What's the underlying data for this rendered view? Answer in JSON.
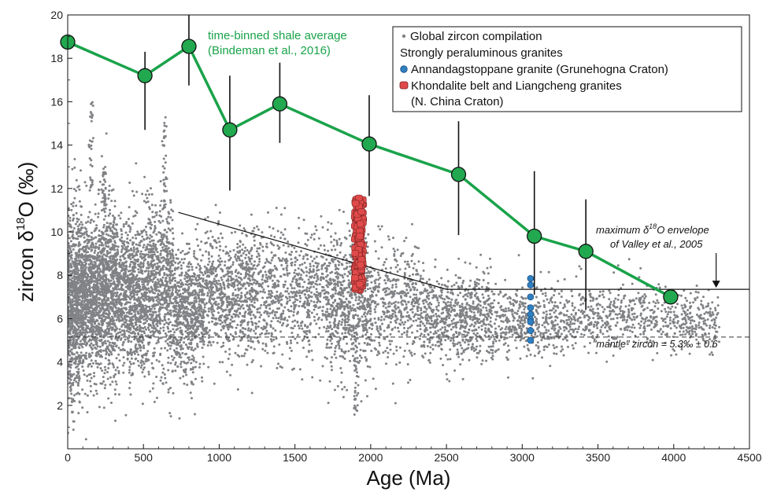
{
  "chart_data": {
    "type": "scatter",
    "xlabel": "Age (Ma)",
    "ylabel_main": "zircon δ",
    "ylabel_sup": "18",
    "ylabel_tail": "O (‰)",
    "xlim": [
      0,
      4500
    ],
    "ylim": [
      0,
      20
    ],
    "x_ticks": [
      0,
      500,
      1000,
      1500,
      2000,
      2500,
      3000,
      3500,
      4000,
      4500
    ],
    "y_ticks": [
      2,
      4,
      6,
      8,
      10,
      12,
      14,
      16,
      18,
      20
    ],
    "grid": false,
    "legend_position": "top-right",
    "legend": {
      "global": "Global zircon compilation",
      "heading": "Strongly peraluminous granites",
      "annandag": "Annandagstoppane granite (Grunehogna Craton)",
      "khondalite_line1": "Khondalite belt and Liangcheng granites",
      "khondalite_line2": "(N. China Craton)"
    },
    "colors": {
      "global": "#808285",
      "shale": "#1aa34a",
      "shale_marker": "#22a84f",
      "annandag": "#2f7fc1",
      "khondalite": "#e04a4a"
    },
    "series": [
      {
        "name": "time-binned shale average",
        "label_line1": "time-binned shale average",
        "label_line2": "(Bindeman et al., 2016)",
        "x": [
          0,
          510,
          800,
          1070,
          1400,
          1990,
          2580,
          3080,
          3420,
          3980
        ],
        "y": [
          18.75,
          17.2,
          18.55,
          14.7,
          15.9,
          14.05,
          12.65,
          9.8,
          9.1,
          7.0
        ],
        "err_low": [
          null,
          14.7,
          16.75,
          11.9,
          14.1,
          11.65,
          9.85,
          7.1,
          6.4,
          null
        ],
        "err_high": [
          null,
          18.3,
          20.0,
          17.2,
          17.8,
          16.3,
          15.1,
          12.8,
          11.5,
          null
        ]
      },
      {
        "name": "Annandagstoppane granite (Grunehogna Craton)",
        "x": [
          3055,
          3055,
          3055,
          3055,
          3055,
          3055,
          3055,
          3055,
          3055
        ],
        "y": [
          7.85,
          7.55,
          7.0,
          6.5,
          6.2,
          5.95,
          5.85,
          5.45,
          5.0
        ]
      },
      {
        "name": "Khondalite belt and Liangcheng granites (N. China Craton)",
        "x_range": [
          1895,
          1950
        ],
        "y_range": [
          7.3,
          11.6
        ],
        "count": 140
      },
      {
        "name": "Global zircon compilation",
        "x_range": [
          0,
          4300
        ],
        "y_range": [
          0.2,
          16.0
        ],
        "count": 9000
      }
    ],
    "annotations": {
      "valley_line1": "maximum δ",
      "valley_sup": "18",
      "valley_line1_tail": "O envelope",
      "valley_line2": "of Valley et al., 2005",
      "valley_envelope": {
        "x": [
          730,
          2500,
          4500
        ],
        "y": [
          10.9,
          7.35,
          7.35
        ]
      },
      "mantle_label": "\"mantle\" zircon = 5.3‰ ± 0.6",
      "mantle_y": 5.15,
      "arrow_x": 4280
    }
  }
}
